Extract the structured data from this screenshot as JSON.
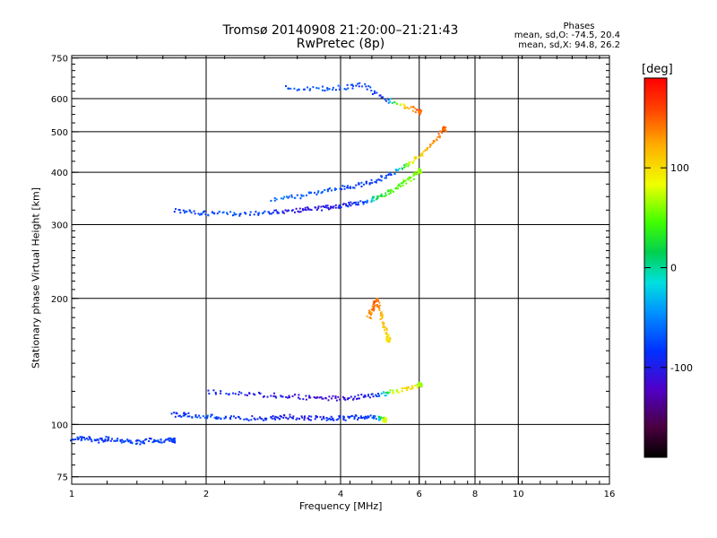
{
  "header": {
    "title": "Tromsø 20140908 21:20:00–21:21:43",
    "subtitle": "RwPretec (8p)",
    "stats_heading": "Phases",
    "stats_line1": "mean, sd,O:  -74.5, 20.4",
    "stats_line2": "mean, sd,X:  94.8, 26.2"
  },
  "colorbar": {
    "unit": "[deg]",
    "ticks": [
      {
        "value": 100,
        "label": "100"
      },
      {
        "value": 0,
        "label": "0"
      },
      {
        "value": -100,
        "label": "-100"
      }
    ],
    "range": [
      -190,
      190
    ]
  },
  "chart_data": {
    "type": "scatter",
    "xlabel": "Frequency [MHz]",
    "ylabel": "Stationary phase Virtual Height [km]",
    "xscale": "log",
    "yscale": "log",
    "xlim": [
      1,
      16
    ],
    "ylim": [
      72,
      760
    ],
    "xticks": [
      1,
      2,
      4,
      6,
      8,
      10,
      16
    ],
    "yticks": [
      75,
      100,
      200,
      300,
      400,
      500,
      600,
      750
    ],
    "grid": true,
    "series": [
      {
        "kind": "E-region trace",
        "x": [
          1.0,
          1.07,
          1.15,
          1.2,
          1.3,
          1.4,
          1.5,
          1.6,
          1.68
        ],
        "y": [
          93,
          93,
          92,
          93,
          92,
          91,
          92,
          92,
          92
        ],
        "phase": [
          -80,
          -85,
          -80,
          -82,
          -78,
          -80,
          -84,
          -80,
          -78
        ]
      },
      {
        "kind": "E-layer 105km",
        "x": [
          1.68,
          1.8,
          2.0,
          2.2,
          2.5,
          2.8,
          3.0,
          3.3,
          3.6,
          3.9,
          4.2,
          4.5,
          4.8,
          5.0
        ],
        "y": [
          106,
          106,
          105,
          104,
          104,
          104,
          105,
          104,
          104,
          104,
          104,
          105,
          104,
          103
        ],
        "phase": [
          -90,
          -80,
          -75,
          -80,
          -85,
          -90,
          -95,
          -100,
          -95,
          -90,
          -85,
          -80,
          -60,
          80
        ]
      },
      {
        "kind": "Es 120km",
        "x": [
          2.0,
          2.4,
          2.8,
          3.2,
          3.6,
          4.0,
          4.4,
          4.8,
          5.2,
          5.6,
          6.0
        ],
        "y": [
          120,
          119,
          118,
          117,
          116,
          116,
          117,
          118,
          120,
          122,
          125
        ],
        "phase": [
          -90,
          -95,
          -100,
          -110,
          -115,
          -110,
          -100,
          -90,
          60,
          110,
          70
        ]
      },
      {
        "kind": "F-layer O-trace",
        "x": [
          1.7,
          1.9,
          2.1,
          2.4,
          2.7,
          3.0,
          3.3,
          3.6,
          3.9,
          4.2,
          4.5,
          4.8,
          5.1,
          5.4,
          5.7,
          6.0
        ],
        "y": [
          325,
          322,
          320,
          320,
          322,
          325,
          327,
          330,
          333,
          337,
          342,
          350,
          360,
          372,
          388,
          405
        ],
        "phase": [
          -80,
          -75,
          -70,
          -75,
          -80,
          -100,
          -110,
          -105,
          -100,
          -90,
          -80,
          20,
          40,
          50,
          55,
          60
        ]
      },
      {
        "kind": "F-layer X-trace",
        "x": [
          2.8,
          3.2,
          3.6,
          4.0,
          4.4,
          4.8,
          5.2,
          5.6,
          6.0,
          6.4,
          6.8
        ],
        "y": [
          345,
          352,
          360,
          368,
          375,
          385,
          400,
          420,
          440,
          470,
          510
        ],
        "phase": [
          -60,
          -65,
          -70,
          -75,
          -80,
          -85,
          -80,
          60,
          110,
          130,
          150
        ]
      },
      {
        "kind": "second-hop F",
        "x": [
          3.0,
          3.5,
          4.0,
          4.5,
          5.0,
          5.5,
          6.0
        ],
        "y": [
          640,
          635,
          640,
          650,
          600,
          580,
          560
        ],
        "phase": [
          -70,
          -70,
          -75,
          -80,
          -90,
          110,
          150
        ]
      },
      {
        "kind": "Es multi-hop",
        "x": [
          4.6,
          4.7,
          4.8,
          4.9,
          5.0,
          5.1
        ],
        "y": [
          180,
          190,
          200,
          185,
          170,
          160
        ],
        "phase": [
          130,
          140,
          150,
          120,
          110,
          100
        ]
      }
    ]
  }
}
